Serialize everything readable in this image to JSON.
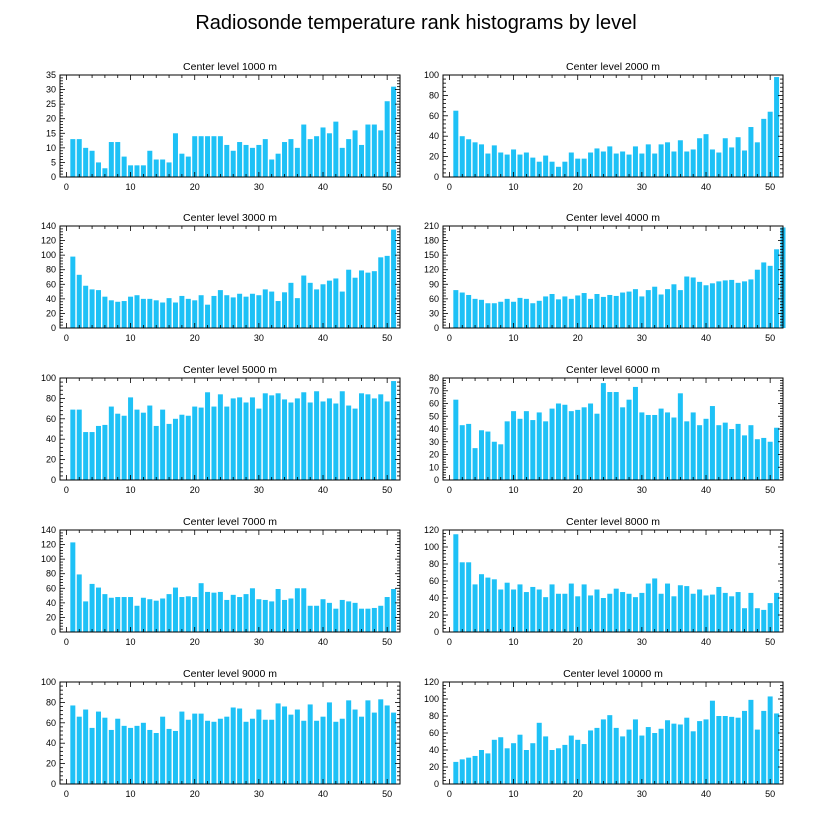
{
  "title": "Radiosonde temperature rank histograms by level",
  "colors": {
    "bar": "#1ec1f6",
    "axis": "#000000",
    "background": "#ffffff"
  },
  "chart_data": [
    {
      "type": "bar",
      "title": "Center level 1000 m",
      "xlim": [
        -1,
        52
      ],
      "ylim": [
        0,
        35
      ],
      "xticks": [
        0,
        10,
        20,
        30,
        40,
        50
      ],
      "yticks": [
        0,
        5,
        10,
        15,
        20,
        25,
        30,
        35
      ],
      "values": [
        13,
        13,
        10,
        9,
        5,
        3,
        12,
        12,
        7,
        4,
        4,
        4,
        9,
        6,
        6,
        5,
        15,
        8,
        7,
        14,
        14,
        14,
        14,
        14,
        11,
        9,
        12,
        11,
        10,
        11,
        13,
        6,
        8,
        12,
        13,
        10,
        18,
        13,
        14,
        17,
        15,
        19,
        10,
        13,
        16,
        11,
        18,
        18,
        16,
        26,
        31
      ]
    },
    {
      "type": "bar",
      "title": "Center level 2000 m",
      "xlim": [
        -1,
        52
      ],
      "ylim": [
        0,
        100
      ],
      "xticks": [
        0,
        10,
        20,
        30,
        40,
        50
      ],
      "yticks": [
        0,
        20,
        40,
        60,
        80,
        100
      ],
      "values": [
        65,
        40,
        37,
        34,
        32,
        23,
        31,
        24,
        22,
        27,
        22,
        24,
        19,
        15,
        21,
        15,
        10,
        15,
        24,
        18,
        18,
        24,
        28,
        25,
        30,
        23,
        25,
        22,
        30,
        23,
        32,
        23,
        32,
        34,
        25,
        36,
        25,
        27,
        38,
        42,
        27,
        24,
        38,
        29,
        39,
        26,
        49,
        34,
        57,
        64,
        98
      ]
    },
    {
      "type": "bar",
      "title": "Center level 3000 m",
      "xlim": [
        -1,
        52
      ],
      "ylim": [
        0,
        140
      ],
      "xticks": [
        0,
        10,
        20,
        30,
        40,
        50
      ],
      "yticks": [
        0,
        20,
        40,
        60,
        80,
        100,
        120,
        140
      ],
      "values": [
        98,
        73,
        58,
        53,
        52,
        43,
        38,
        36,
        37,
        43,
        45,
        40,
        40,
        38,
        35,
        41,
        35,
        44,
        40,
        38,
        45,
        32,
        44,
        52,
        45,
        42,
        47,
        43,
        47,
        45,
        53,
        50,
        37,
        49,
        62,
        41,
        72,
        62,
        53,
        60,
        65,
        68,
        50,
        80,
        69,
        79,
        76,
        78,
        97,
        99,
        135
      ]
    },
    {
      "type": "bar",
      "title": "Center level 4000 m",
      "xlim": [
        -1,
        52
      ],
      "ylim": [
        0,
        210
      ],
      "xticks": [
        0,
        10,
        20,
        30,
        40,
        50
      ],
      "yticks": [
        0,
        30,
        60,
        90,
        120,
        150,
        180,
        210
      ],
      "values": [
        78,
        73,
        68,
        60,
        58,
        51,
        51,
        54,
        60,
        54,
        62,
        60,
        51,
        56,
        65,
        70,
        59,
        65,
        60,
        67,
        72,
        60,
        70,
        64,
        68,
        66,
        73,
        75,
        80,
        65,
        78,
        85,
        69,
        80,
        90,
        78,
        106,
        104,
        95,
        88,
        92,
        96,
        98,
        99,
        93,
        96,
        100,
        120,
        135,
        128,
        162,
        207
      ]
    },
    {
      "type": "bar",
      "title": "Center level 5000 m",
      "xlim": [
        -1,
        52
      ],
      "ylim": [
        0,
        100
      ],
      "xticks": [
        0,
        10,
        20,
        30,
        40,
        50
      ],
      "yticks": [
        0,
        20,
        40,
        60,
        80,
        100
      ],
      "values": [
        69,
        69,
        47,
        47,
        53,
        54,
        72,
        65,
        63,
        81,
        69,
        66,
        73,
        53,
        69,
        55,
        60,
        64,
        63,
        72,
        71,
        86,
        72,
        84,
        72,
        80,
        81,
        76,
        81,
        70,
        85,
        83,
        85,
        79,
        76,
        80,
        86,
        76,
        87,
        77,
        80,
        75,
        87,
        73,
        70,
        85,
        84,
        80,
        84,
        77,
        97
      ]
    },
    {
      "type": "bar",
      "title": "Center level 6000 m",
      "xlim": [
        -1,
        52
      ],
      "ylim": [
        0,
        80
      ],
      "xticks": [
        0,
        10,
        20,
        30,
        40,
        50
      ],
      "yticks": [
        0,
        10,
        20,
        30,
        40,
        50,
        60,
        70,
        80
      ],
      "values": [
        63,
        43,
        44,
        25,
        39,
        38,
        30,
        28,
        46,
        54,
        48,
        54,
        47,
        53,
        46,
        56,
        60,
        59,
        54,
        55,
        57,
        60,
        52,
        76,
        69,
        69,
        57,
        63,
        73,
        53,
        51,
        51,
        56,
        53,
        49,
        68,
        46,
        53,
        43,
        48,
        58,
        43,
        45,
        40,
        44,
        35,
        43,
        32,
        33,
        30,
        41
      ]
    },
    {
      "type": "bar",
      "title": "Center level 7000 m",
      "xlim": [
        -1,
        52
      ],
      "ylim": [
        0,
        140
      ],
      "xticks": [
        0,
        10,
        20,
        30,
        40,
        50
      ],
      "yticks": [
        0,
        20,
        40,
        60,
        80,
        100,
        120,
        140
      ],
      "values": [
        123,
        79,
        42,
        66,
        61,
        52,
        47,
        48,
        48,
        48,
        36,
        47,
        45,
        43,
        46,
        52,
        61,
        48,
        49,
        48,
        67,
        55,
        54,
        55,
        44,
        51,
        48,
        52,
        60,
        45,
        44,
        42,
        59,
        44,
        46,
        60,
        60,
        36,
        36,
        45,
        40,
        32,
        44,
        42,
        40,
        32,
        32,
        33,
        36,
        48,
        59
      ]
    },
    {
      "type": "bar",
      "title": "Center level 8000 m",
      "xlim": [
        -1,
        52
      ],
      "ylim": [
        0,
        120
      ],
      "xticks": [
        0,
        10,
        20,
        30,
        40,
        50
      ],
      "yticks": [
        0,
        20,
        40,
        60,
        80,
        100,
        120
      ],
      "values": [
        115,
        82,
        82,
        56,
        68,
        64,
        62,
        50,
        58,
        50,
        56,
        47,
        53,
        50,
        41,
        56,
        45,
        45,
        57,
        42,
        56,
        43,
        50,
        40,
        45,
        51,
        47,
        45,
        41,
        46,
        57,
        63,
        45,
        57,
        42,
        55,
        54,
        45,
        50,
        43,
        44,
        53,
        46,
        42,
        47,
        28,
        46,
        28,
        26,
        34,
        46
      ]
    },
    {
      "type": "bar",
      "title": "Center level 9000 m",
      "xlim": [
        -1,
        52
      ],
      "ylim": [
        0,
        100
      ],
      "xticks": [
        0,
        10,
        20,
        30,
        40,
        50
      ],
      "yticks": [
        0,
        20,
        40,
        60,
        80,
        100
      ],
      "values": [
        77,
        66,
        73,
        55,
        71,
        65,
        53,
        64,
        57,
        55,
        57,
        60,
        53,
        50,
        66,
        54,
        52,
        71,
        63,
        69,
        69,
        62,
        61,
        64,
        66,
        75,
        74,
        61,
        64,
        73,
        63,
        63,
        79,
        76,
        68,
        73,
        62,
        78,
        62,
        66,
        80,
        61,
        64,
        82,
        73,
        66,
        82,
        70,
        83,
        77,
        70
      ]
    },
    {
      "type": "bar",
      "title": "Center level 10000 m",
      "xlim": [
        -1,
        52
      ],
      "ylim": [
        0,
        120
      ],
      "xticks": [
        0,
        10,
        20,
        30,
        40,
        50
      ],
      "yticks": [
        0,
        20,
        40,
        60,
        80,
        100,
        120
      ],
      "values": [
        26,
        29,
        31,
        33,
        40,
        36,
        52,
        55,
        42,
        48,
        58,
        40,
        48,
        72,
        56,
        40,
        42,
        46,
        57,
        52,
        47,
        63,
        66,
        76,
        81,
        66,
        56,
        64,
        76,
        57,
        67,
        60,
        65,
        75,
        71,
        70,
        78,
        62,
        74,
        76,
        98,
        80,
        80,
        79,
        78,
        86,
        99,
        64,
        86,
        103,
        83
      ]
    }
  ]
}
